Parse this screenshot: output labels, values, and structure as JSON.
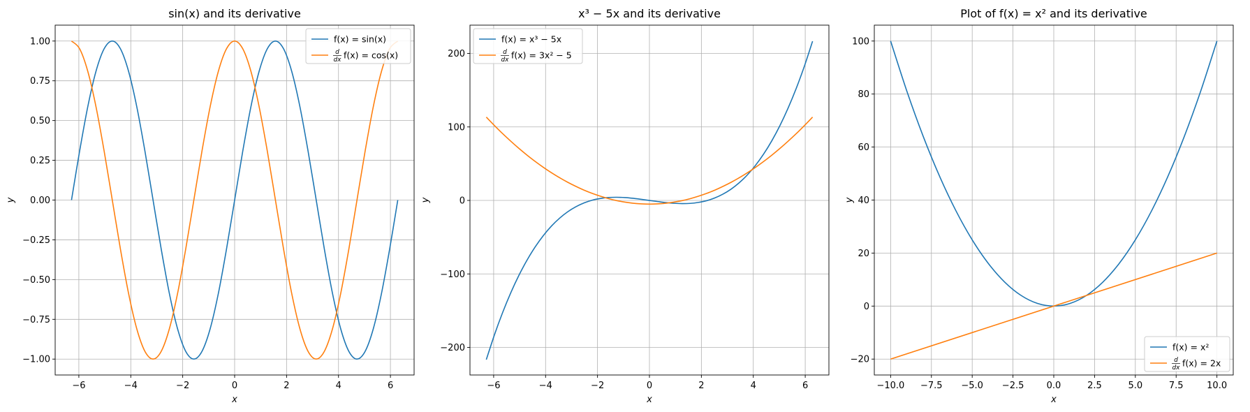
{
  "chart_data": [
    {
      "type": "line",
      "title": "sin(x) and its derivative",
      "xlabel": "x",
      "ylabel": "y",
      "xlim": [
        -6.912,
        6.912
      ],
      "ylim": [
        -1.1,
        1.1
      ],
      "xticks": [
        -6,
        -4,
        -2,
        0,
        2,
        4,
        6
      ],
      "xtick_labels": [
        "−6",
        "−4",
        "−2",
        "0",
        "2",
        "4",
        "6"
      ],
      "yticks": [
        -1.0,
        -0.75,
        -0.5,
        -0.25,
        0.0,
        0.25,
        0.5,
        0.75,
        1.0
      ],
      "ytick_labels": [
        "−1.00",
        "−0.75",
        "−0.50",
        "−0.25",
        "0.00",
        "0.25",
        "0.50",
        "0.75",
        "1.00"
      ],
      "grid": true,
      "legend_position": "top-right",
      "series": [
        {
          "name": "f(x) = sin(x)",
          "color": "#1f77b4",
          "x": [
            -6.283,
            -5.969,
            -5.655,
            -5.341,
            -5.027,
            -4.712,
            -4.398,
            -4.084,
            -3.77,
            -3.456,
            -3.142,
            -2.827,
            -2.513,
            -2.199,
            -1.885,
            -1.571,
            -1.257,
            -0.942,
            -0.628,
            -0.314,
            0.0,
            0.314,
            0.628,
            0.942,
            1.257,
            1.571,
            1.885,
            2.199,
            2.513,
            2.827,
            3.142,
            3.456,
            3.77,
            4.084,
            4.398,
            4.712,
            5.027,
            5.341,
            5.655,
            5.969,
            6.283
          ],
          "y": [
            0.0,
            0.309,
            0.588,
            0.809,
            0.951,
            1.0,
            0.951,
            0.809,
            0.588,
            0.309,
            0.0,
            -0.309,
            -0.588,
            -0.809,
            -0.951,
            -1.0,
            -0.951,
            -0.809,
            -0.588,
            -0.309,
            0.0,
            0.309,
            0.588,
            0.809,
            0.951,
            1.0,
            0.951,
            0.809,
            0.588,
            0.309,
            0.0,
            -0.309,
            -0.588,
            -0.809,
            -0.951,
            -1.0,
            -0.951,
            -0.809,
            -0.588,
            -0.309,
            0.0
          ]
        },
        {
          "name": "d/dx f(x) = cos(x)",
          "color": "#ff7f0e",
          "x": [
            -6.283,
            -5.969,
            -5.655,
            -5.341,
            -5.027,
            -4.712,
            -4.398,
            -4.084,
            -3.77,
            -3.456,
            -3.142,
            -2.827,
            -2.513,
            -2.199,
            -1.885,
            -1.571,
            -1.257,
            -0.942,
            -0.628,
            -0.314,
            0.0,
            0.314,
            0.628,
            0.942,
            1.257,
            1.571,
            1.885,
            2.199,
            2.513,
            2.827,
            3.142,
            3.456,
            3.77,
            4.084,
            4.398,
            4.712,
            5.027,
            5.341,
            5.655,
            5.969,
            6.283
          ],
          "y": [
            1.0,
            0.951,
            0.809,
            0.588,
            0.309,
            0.0,
            -0.309,
            -0.588,
            -0.809,
            -0.951,
            -1.0,
            -0.951,
            -0.809,
            -0.588,
            -0.309,
            0.0,
            0.309,
            0.588,
            0.809,
            0.951,
            1.0,
            0.951,
            0.809,
            0.588,
            0.309,
            0.0,
            -0.309,
            -0.588,
            -0.809,
            -0.951,
            -1.0,
            -0.951,
            -0.809,
            -0.588,
            -0.309,
            0.0,
            0.309,
            0.588,
            0.809,
            0.951,
            1.0
          ]
        }
      ]
    },
    {
      "type": "line",
      "title": "x³ − 5x and its derivative",
      "xlabel": "x",
      "ylabel": "y",
      "xlim": [
        -6.912,
        6.912
      ],
      "ylim": [
        -237.5,
        238.5
      ],
      "xticks": [
        -6,
        -4,
        -2,
        0,
        2,
        4,
        6
      ],
      "xtick_labels": [
        "−6",
        "−4",
        "−2",
        "0",
        "2",
        "4",
        "6"
      ],
      "yticks": [
        -200,
        -100,
        0,
        100,
        200
      ],
      "ytick_labels": [
        "−200",
        "−100",
        "0",
        "100",
        "200"
      ],
      "grid": true,
      "legend_position": "top-left",
      "series": [
        {
          "name": "f(x) = x³ − 5x",
          "color": "#1f77b4",
          "x": [
            -6.283,
            -5.969,
            -5.655,
            -5.341,
            -5.027,
            -4.712,
            -4.398,
            -4.084,
            -3.77,
            -3.456,
            -3.142,
            -2.827,
            -2.513,
            -2.199,
            -1.885,
            -1.571,
            -1.257,
            -0.942,
            -0.628,
            -0.314,
            0.0,
            0.314,
            0.628,
            0.942,
            1.257,
            1.571,
            1.885,
            2.199,
            2.513,
            2.827,
            3.142,
            3.456,
            3.77,
            4.084,
            4.398,
            4.712,
            5.027,
            5.341,
            5.655,
            5.969,
            6.283
          ],
          "y": [
            -216.6,
            -182.8,
            -152.6,
            -125.7,
            -101.9,
            -81.1,
            -63.1,
            -47.7,
            -34.7,
            -24.0,
            -15.3,
            -8.5,
            -3.3,
            0.4,
            2.7,
            4.0,
            4.3,
            3.9,
            2.9,
            1.5,
            0.0,
            -1.5,
            -2.9,
            -3.9,
            -4.3,
            -4.0,
            -2.7,
            -0.4,
            3.3,
            8.5,
            15.3,
            24.0,
            34.7,
            47.7,
            63.1,
            81.1,
            101.9,
            125.7,
            152.6,
            182.8,
            216.6
          ]
        },
        {
          "name": "d/dx f(x) = 3x² − 5",
          "color": "#ff7f0e",
          "x": [
            -6.283,
            -5.969,
            -5.655,
            -5.341,
            -5.027,
            -4.712,
            -4.398,
            -4.084,
            -3.77,
            -3.456,
            -3.142,
            -2.827,
            -2.513,
            -2.199,
            -1.885,
            -1.571,
            -1.257,
            -0.942,
            -0.628,
            -0.314,
            0.0,
            0.314,
            0.628,
            0.942,
            1.257,
            1.571,
            1.885,
            2.199,
            2.513,
            2.827,
            3.142,
            3.456,
            3.77,
            4.084,
            4.398,
            4.712,
            5.027,
            5.341,
            5.655,
            5.969,
            6.283
          ],
          "y": [
            113.4,
            101.9,
            90.9,
            80.6,
            70.8,
            61.6,
            53.0,
            45.0,
            37.6,
            30.8,
            24.6,
            19.0,
            13.9,
            9.5,
            5.7,
            2.4,
            -0.3,
            -2.3,
            -3.8,
            -4.7,
            -5.0,
            -4.7,
            -3.8,
            -2.3,
            -0.3,
            2.4,
            5.7,
            9.5,
            13.9,
            19.0,
            24.6,
            30.8,
            37.6,
            45.0,
            53.0,
            61.6,
            70.8,
            80.6,
            90.9,
            101.9,
            113.4
          ]
        }
      ]
    },
    {
      "type": "line",
      "title": "Plot of f(x) = x² and its derivative",
      "xlabel": "x",
      "ylabel": "y",
      "xlim": [
        -11.0,
        11.0
      ],
      "ylim": [
        -26.0,
        106.0
      ],
      "xticks": [
        -10.0,
        -7.5,
        -5.0,
        -2.5,
        0.0,
        2.5,
        5.0,
        7.5,
        10.0
      ],
      "xtick_labels": [
        "−10.0",
        "−7.5",
        "−5.0",
        "−2.5",
        "0.0",
        "2.5",
        "5.0",
        "7.5",
        "10.0"
      ],
      "yticks": [
        -20,
        0,
        20,
        40,
        60,
        80,
        100
      ],
      "ytick_labels": [
        "−20",
        "0",
        "20",
        "40",
        "60",
        "80",
        "100"
      ],
      "grid": true,
      "legend_position": "bottom-right",
      "series": [
        {
          "name": "f(x) = x²",
          "color": "#1f77b4",
          "x": [
            -10.0,
            -9.0,
            -8.0,
            -7.0,
            -6.0,
            -5.0,
            -4.0,
            -3.0,
            -2.0,
            -1.0,
            0.0,
            1.0,
            2.0,
            3.0,
            4.0,
            5.0,
            6.0,
            7.0,
            8.0,
            9.0,
            10.0
          ],
          "y": [
            100,
            81,
            64,
            49,
            36,
            25,
            16,
            9,
            4,
            1,
            0,
            1,
            4,
            9,
            16,
            25,
            36,
            49,
            64,
            81,
            100
          ]
        },
        {
          "name": "d/dx f(x) = 2x",
          "color": "#ff7f0e",
          "x": [
            -10.0,
            10.0
          ],
          "y": [
            -20,
            20
          ]
        }
      ]
    }
  ],
  "legends": [
    [
      {
        "prefix": "f(x) = sin(x)"
      },
      {
        "prefix": "",
        "rest": "f(x) = cos(x)"
      }
    ],
    [
      {
        "prefix": "f(x) = x³ − 5x"
      },
      {
        "prefix": "",
        "rest": "f(x) = 3x² − 5"
      }
    ],
    [
      {
        "prefix": "f(x) = x²"
      },
      {
        "prefix": "",
        "rest": "f(x) = 2x"
      }
    ]
  ],
  "derivative_symbol": {
    "numerator": "d",
    "denominator": "dx"
  }
}
